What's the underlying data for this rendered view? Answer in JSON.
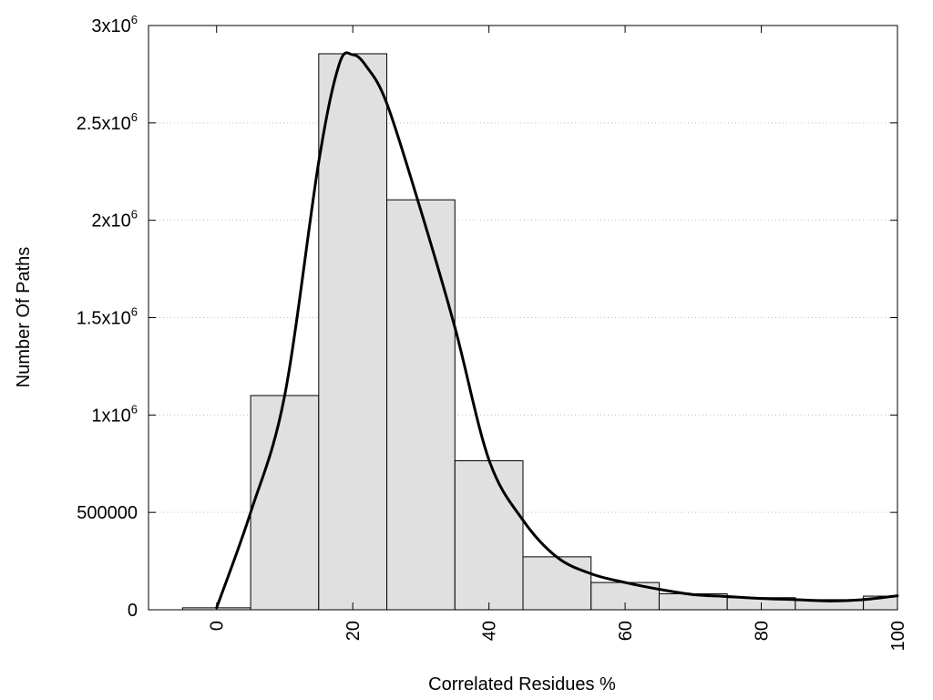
{
  "chart_data": {
    "type": "bar",
    "title": "",
    "xlabel": "Correlated Residues %",
    "ylabel": "Number Of Paths",
    "xlim": [
      -10,
      100
    ],
    "ylim": [
      0,
      3000000
    ],
    "grid": "y-dotted",
    "bin_width": 10,
    "categories": [
      "0",
      "10",
      "20",
      "30",
      "40",
      "50",
      "60",
      "70",
      "80",
      "90",
      "100"
    ],
    "values": [
      10000,
      1100000,
      2855000,
      2105000,
      765000,
      272000,
      140000,
      82000,
      62000,
      52000,
      70000
    ],
    "curve": {
      "x": [
        0,
        5,
        10,
        15,
        18,
        20,
        22,
        25,
        30,
        35,
        40,
        45,
        50,
        55,
        60,
        65,
        70,
        75,
        80,
        85,
        90,
        95,
        100
      ],
      "y": [
        10000,
        500000,
        1100000,
        2300000,
        2800000,
        2850000,
        2790000,
        2600000,
        2050000,
        1450000,
        770000,
        460000,
        270000,
        185000,
        140000,
        105000,
        78000,
        68000,
        58000,
        52000,
        45000,
        52000,
        72000
      ]
    },
    "x_ticks": [
      {
        "value": 0,
        "label": "0"
      },
      {
        "value": 20,
        "label": "20"
      },
      {
        "value": 40,
        "label": "40"
      },
      {
        "value": 60,
        "label": "60"
      },
      {
        "value": 80,
        "label": "80"
      },
      {
        "value": 100,
        "label": "100"
      }
    ],
    "y_ticks": [
      {
        "value": 0,
        "label": "0",
        "exp": ""
      },
      {
        "value": 500000,
        "label": "500000",
        "exp": ""
      },
      {
        "value": 1000000,
        "label": "1x10",
        "exp": "6"
      },
      {
        "value": 1500000,
        "label": "1.5x10",
        "exp": "6"
      },
      {
        "value": 2000000,
        "label": "2x10",
        "exp": "6"
      },
      {
        "value": 2500000,
        "label": "2.5x10",
        "exp": "6"
      },
      {
        "value": 3000000,
        "label": "3x10",
        "exp": "6"
      }
    ],
    "colors": {
      "bar_fill": "#e0e0e0",
      "bar_stroke": "#000000",
      "curve": "#000000",
      "grid": "#bfbfbf"
    }
  }
}
